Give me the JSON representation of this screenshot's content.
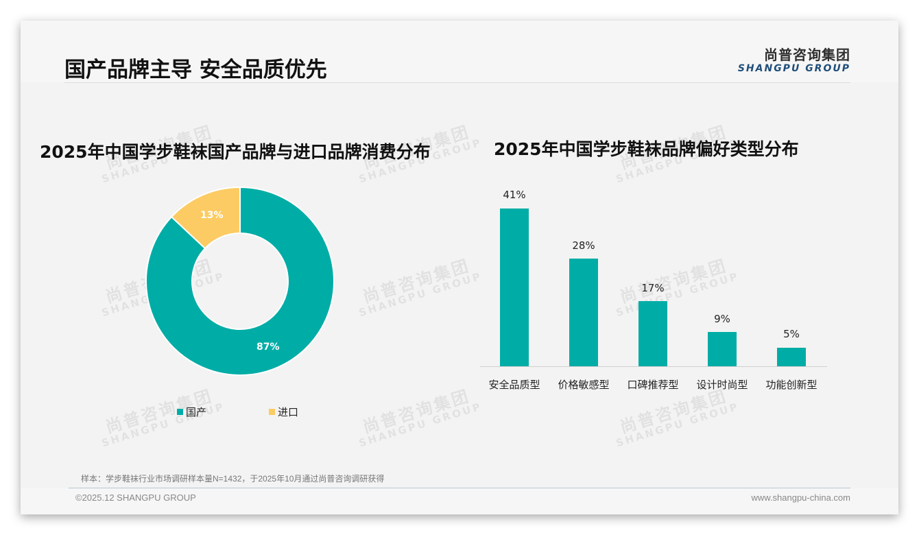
{
  "page": {
    "title": "国产品牌主导 安全品质优先"
  },
  "logo": {
    "cn": "尚普咨询集团",
    "en": "SHANGPU GROUP"
  },
  "watermark": {
    "cn": "尚普咨询集团",
    "en": "SHANGPU GROUP"
  },
  "colors": {
    "teal": "#00ADA6",
    "yellow": "#FCCB63",
    "background": "#F3F3F3",
    "brand_blue": "#1F4E79"
  },
  "chart_data": [
    {
      "type": "pie",
      "subtype": "donut",
      "title": "2025年中国学步鞋袜国产品牌与进口品牌消费分布",
      "categories": [
        "国产",
        "进口"
      ],
      "values": [
        87,
        13
      ],
      "labels": [
        "87%",
        "13%"
      ],
      "colors": [
        "#00ADA6",
        "#FCCB63"
      ],
      "legend_position": "bottom"
    },
    {
      "type": "bar",
      "title": "2025年中国学步鞋袜品牌偏好类型分布",
      "categories": [
        "安全品质型",
        "价格敏感型",
        "口碑推荐型",
        "设计时尚型",
        "功能创新型"
      ],
      "values": [
        41,
        28,
        17,
        9,
        5
      ],
      "labels": [
        "41%",
        "28%",
        "17%",
        "9%",
        "5%"
      ],
      "xlabel": "",
      "ylabel": "",
      "ylim": [
        0,
        45
      ],
      "grid": false,
      "color": "#00ADA6"
    }
  ],
  "footer": {
    "note": "样本：学步鞋袜行业市场调研样本量N=1432，于2025年10月通过尚普咨询调研获得",
    "copyright": "©2025.12 SHANGPU GROUP",
    "website": "www.shangpu-china.com"
  }
}
